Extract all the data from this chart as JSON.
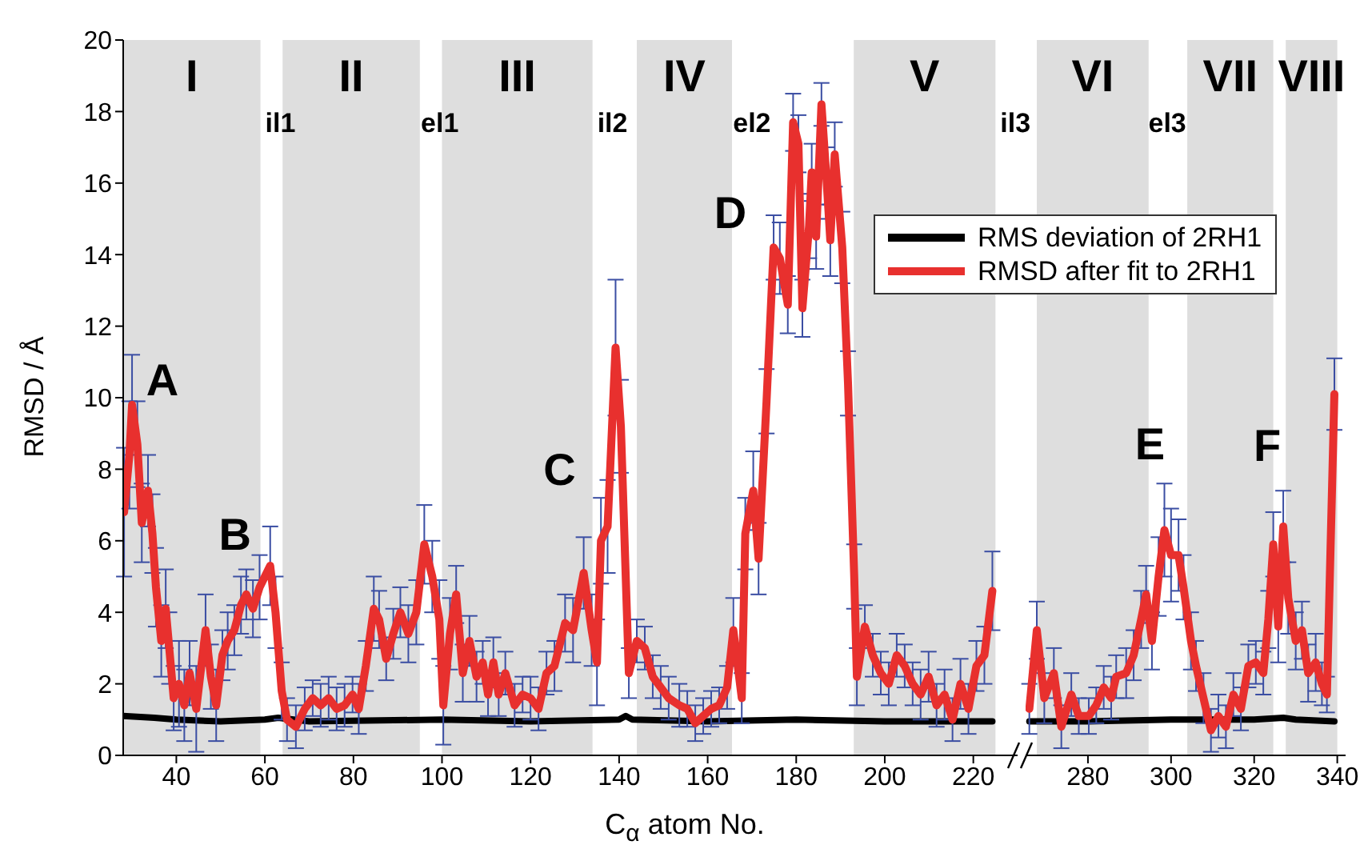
{
  "chart_data": [
    {
      "type": "line",
      "ylabel": "RMSD / Å",
      "xlabel": "C$_{α}$ atom No.",
      "xlim": [
        28,
        230
      ],
      "xticks": [
        40,
        60,
        80,
        100,
        120,
        140,
        160,
        180,
        200,
        220
      ],
      "ylim": [
        0,
        20
      ],
      "yticks": [
        0,
        2,
        4,
        6,
        8,
        10,
        12,
        14,
        16,
        18,
        20
      ],
      "marker": "none",
      "bands": [
        {
          "axis": "x",
          "from": 28,
          "to": 59,
          "label": "I",
          "color": "#dedede"
        },
        {
          "axis": "x",
          "from": 64,
          "to": 95,
          "label": "II",
          "color": "#dedede"
        },
        {
          "axis": "x",
          "from": 100,
          "to": 134,
          "label": "III",
          "color": "#dedede"
        },
        {
          "axis": "x",
          "from": 144,
          "to": 165.5,
          "label": "IV",
          "color": "#dedede"
        },
        {
          "axis": "x",
          "from": 193,
          "to": 225,
          "label": "V",
          "color": "#dedede"
        }
      ],
      "annotations": [
        {
          "text": "A",
          "x": 30.0,
          "y": 9.8
        },
        {
          "text": "B",
          "x": 61.2,
          "y": 5.3
        },
        {
          "text": "C",
          "x": 132.0,
          "y": 5.1
        },
        {
          "text": "D",
          "x": 174.9,
          "y": 14.2
        },
        "il1",
        "el1",
        "il2",
        "el2",
        "il3"
      ],
      "series": [
        {
          "color": "#000000",
          "x": [
            28,
            35,
            40,
            50,
            60,
            63,
            70,
            100,
            120,
            140,
            141.5,
            143,
            160,
            180,
            200,
            224.3
          ],
          "values": [
            1.1,
            1.05,
            1.0,
            0.95,
            1.0,
            1.05,
            0.95,
            1.0,
            0.95,
            1.0,
            1.1,
            1.0,
            0.95,
            1.0,
            0.95,
            0.95
          ]
        },
        {
          "color": "#e8302e",
          "x": [
            28.2,
            29.4,
            30.0,
            31.2,
            32.2,
            33.6,
            34.6,
            35.4,
            36.6,
            37.6,
            38.4,
            39.4,
            40.6,
            41.8,
            43.0,
            44.5,
            46.6,
            47.8,
            49.0,
            50.4,
            51.6,
            53.1,
            54.6,
            55.8,
            57.3,
            58.8,
            61.2,
            62.4,
            63.8,
            65.0,
            67.0,
            69.0,
            70.8,
            72.6,
            74.4,
            76.2,
            78.0,
            79.8,
            81.2,
            82.8,
            84.6,
            85.8,
            87.4,
            89.0,
            90.6,
            92.4,
            94.2,
            96.0,
            97.8,
            99.4,
            100.3,
            101.8,
            103.2,
            104.7,
            106.2,
            107.8,
            109.2,
            110.4,
            111.6,
            112.8,
            114.3,
            116.4,
            118.2,
            120.0,
            121.8,
            123.6,
            125.4,
            127.8,
            129.6,
            132.0,
            133.8,
            135.0,
            135.9,
            137.4,
            139.2,
            140.4,
            142.2,
            144.0,
            145.8,
            147.6,
            149.4,
            151.2,
            153.6,
            155.4,
            157.2,
            159.0,
            160.8,
            162.6,
            164.4,
            165.8,
            167.7,
            168.5,
            170.3,
            171.5,
            173.3,
            174.9,
            176.3,
            178.1,
            179.3,
            180.5,
            181.4,
            182.9,
            183.5,
            184.5,
            185.7,
            186.9,
            187.7,
            188.7,
            190.4,
            191.7,
            193.1,
            193.7,
            195.5,
            197.3,
            199.1,
            200.9,
            202.7,
            204.5,
            206.3,
            208.1,
            209.9,
            211.7,
            213.5,
            215.3,
            217.1,
            218.9,
            220.7,
            222.5,
            224.3
          ],
          "values": [
            6.8,
            8.4,
            9.8,
            8.7,
            6.5,
            7.4,
            6.2,
            4.7,
            3.2,
            4.1,
            3.0,
            1.6,
            2.0,
            1.4,
            2.3,
            1.3,
            3.5,
            2.2,
            1.4,
            2.8,
            3.2,
            3.5,
            4.2,
            4.5,
            4.1,
            4.7,
            5.3,
            4.0,
            1.8,
            1.0,
            0.8,
            1.3,
            1.6,
            1.4,
            1.6,
            1.3,
            1.4,
            1.7,
            1.3,
            2.5,
            4.1,
            3.8,
            2.7,
            3.4,
            4.0,
            3.4,
            4.0,
            5.9,
            5.0,
            3.8,
            1.4,
            3.4,
            4.5,
            2.3,
            3.2,
            2.2,
            2.6,
            1.7,
            2.6,
            1.7,
            2.3,
            1.4,
            1.7,
            1.6,
            1.3,
            2.3,
            2.5,
            3.7,
            3.5,
            5.1,
            3.5,
            2.6,
            6.0,
            6.4,
            11.4,
            9.2,
            2.3,
            3.2,
            3.0,
            2.2,
            1.9,
            1.6,
            1.4,
            1.3,
            0.9,
            1.1,
            1.3,
            1.4,
            1.9,
            3.5,
            1.6,
            6.2,
            7.4,
            5.5,
            9.9,
            14.2,
            13.9,
            12.6,
            17.7,
            17.1,
            12.5,
            14.8,
            16.3,
            14.5,
            18.2,
            16.0,
            14.4,
            16.8,
            14.2,
            10.4,
            5.0,
            2.2,
            3.6,
            2.8,
            2.3,
            2.0,
            2.8,
            2.5,
            2.0,
            1.7,
            2.2,
            1.4,
            1.7,
            1.0,
            2.0,
            1.3,
            2.5,
            2.8,
            4.6
          ],
          "errors": [
            1.8,
            1.5,
            1.4,
            1.2,
            1.1,
            1.0,
            1.1,
            1.1,
            1.0,
            1.1,
            1.0,
            0.9,
            1.2,
            1.0,
            0.9,
            1.2,
            1.0,
            0.9,
            1.0,
            0.7,
            0.8,
            0.7,
            0.8,
            0.7,
            0.8,
            0.9,
            1.1,
            1.0,
            0.8,
            0.6,
            0.6,
            0.6,
            0.5,
            0.6,
            0.6,
            0.6,
            0.6,
            0.5,
            0.7,
            0.7,
            0.9,
            0.8,
            0.6,
            0.7,
            0.7,
            0.8,
            0.9,
            1.1,
            1.0,
            1.1,
            1.1,
            1.0,
            0.8,
            0.8,
            0.7,
            0.7,
            0.6,
            0.6,
            0.7,
            0.6,
            0.6,
            0.6,
            0.5,
            0.6,
            0.6,
            0.6,
            0.7,
            0.8,
            0.9,
            1.0,
            1.0,
            1.2,
            1.2,
            1.3,
            1.9,
            1.3,
            0.7,
            0.6,
            0.6,
            0.6,
            0.6,
            0.6,
            0.6,
            0.5,
            0.5,
            0.5,
            0.5,
            0.5,
            0.6,
            0.9,
            0.7,
            1.0,
            1.1,
            1.0,
            0.9,
            0.9,
            1.0,
            0.8,
            0.8,
            0.8,
            0.8,
            0.9,
            0.8,
            0.9,
            0.6,
            1.0,
            1.0,
            0.9,
            1.0,
            0.9,
            0.9,
            0.8,
            0.6,
            0.6,
            0.6,
            0.6,
            0.6,
            0.6,
            0.6,
            0.7,
            0.7,
            0.6,
            0.7,
            0.6,
            0.7,
            0.7,
            0.7,
            0.8,
            1.1
          ]
        }
      ]
    },
    {
      "type": "line",
      "xlim": [
        265,
        342
      ],
      "xticks": [
        280,
        300,
        320,
        340
      ],
      "ylim": [
        0,
        20
      ],
      "yticks": [
        0,
        2,
        4,
        6,
        8,
        10,
        12,
        14,
        16,
        18,
        20
      ],
      "tick_labels": "x",
      "marker": "none",
      "legend": "top left",
      "bands": [
        {
          "axis": "x",
          "from": 267.7,
          "to": 294.6,
          "label": "VI",
          "color": "#dedede"
        },
        {
          "axis": "x",
          "from": 303.9,
          "to": 324.6,
          "label": "VII",
          "color": "#dedede"
        },
        {
          "axis": "x",
          "from": 327.6,
          "to": 340,
          "label": "VIII",
          "color": "#dedede"
        }
      ],
      "annotations": [
        {
          "text": "E",
          "x": 298.4,
          "y": 6.3
        },
        {
          "text": "F",
          "x": 327.0,
          "y": 6.4
        },
        "el3"
      ],
      "series": [
        {
          "name": "RMS deviation of 2RH1",
          "color": "#000000",
          "x": [
            265.9,
            280,
            300,
            315,
            320,
            327,
            330,
            339.3
          ],
          "values": [
            0.95,
            0.95,
            1.0,
            1.0,
            1.0,
            1.05,
            1.0,
            0.95
          ]
        },
        {
          "name": "RMSD after fit to 2RH1",
          "color": "#e8302e",
          "x": [
            265.9,
            267.7,
            269.5,
            271.8,
            273.6,
            276.0,
            277.8,
            280.2,
            282.0,
            283.8,
            285.6,
            286.8,
            289.2,
            291.0,
            292.8,
            294.0,
            295.4,
            297.0,
            298.4,
            300.0,
            301.8,
            303.0,
            304.8,
            306.0,
            307.8,
            309.6,
            311.4,
            313.2,
            315.0,
            316.8,
            318.6,
            320.4,
            322.2,
            323.4,
            324.6,
            325.8,
            327.0,
            328.2,
            330.0,
            331.5,
            333.0,
            334.8,
            336.3,
            337.5,
            339.3
          ],
          "values": [
            1.3,
            3.5,
            1.6,
            2.3,
            0.8,
            1.7,
            1.1,
            1.1,
            1.4,
            1.9,
            1.6,
            2.2,
            2.3,
            2.8,
            3.8,
            4.5,
            3.2,
            5.0,
            6.3,
            5.6,
            5.6,
            4.7,
            3.2,
            2.5,
            1.6,
            0.7,
            1.1,
            0.8,
            1.7,
            1.3,
            2.5,
            2.6,
            2.3,
            3.8,
            5.9,
            3.6,
            6.4,
            4.4,
            3.2,
            3.5,
            2.3,
            2.6,
            2.0,
            1.7,
            10.1
          ],
          "errors": [
            0.7,
            0.8,
            0.7,
            0.7,
            0.6,
            0.6,
            0.5,
            0.5,
            0.5,
            0.6,
            0.6,
            0.6,
            0.7,
            0.7,
            0.8,
            0.8,
            0.8,
            1.1,
            1.3,
            1.3,
            1.0,
            0.9,
            0.8,
            0.7,
            0.7,
            0.6,
            0.6,
            0.6,
            0.6,
            0.6,
            0.6,
            0.6,
            0.6,
            0.8,
            0.9,
            1.0,
            1.0,
            1.0,
            0.8,
            0.8,
            0.8,
            0.8,
            0.6,
            0.5,
            1.0
          ]
        }
      ]
    }
  ]
}
